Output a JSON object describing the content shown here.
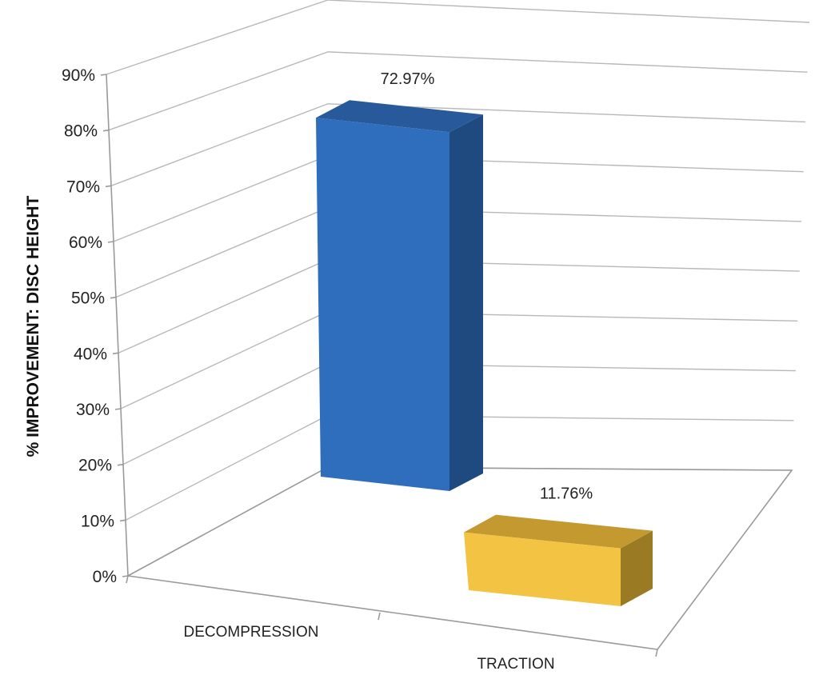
{
  "chart_data": {
    "type": "bar",
    "categories": [
      "DECOMPRESSION",
      "TRACTION"
    ],
    "values": [
      72.97,
      11.76
    ],
    "data_labels": [
      "72.97%",
      "11.76%"
    ],
    "ylabel": "% IMPROVEMENT:   DISC HEIGHT",
    "ylim": [
      0,
      90
    ],
    "yticks": [
      0,
      10,
      20,
      30,
      40,
      50,
      60,
      70,
      80,
      90
    ],
    "ytick_labels": [
      "0%",
      "10%",
      "20%",
      "30%",
      "40%",
      "50%",
      "60%",
      "70%",
      "80%",
      "90%"
    ],
    "grid": true,
    "style": "3d",
    "colors": {
      "DECOMPRESSION": {
        "front": "#2f6dbd",
        "side": "#1f4a80",
        "top": "#28599a"
      },
      "TRACTION": {
        "front": "#f3c443",
        "side": "#9a7a22",
        "top": "#c49a30"
      }
    }
  }
}
